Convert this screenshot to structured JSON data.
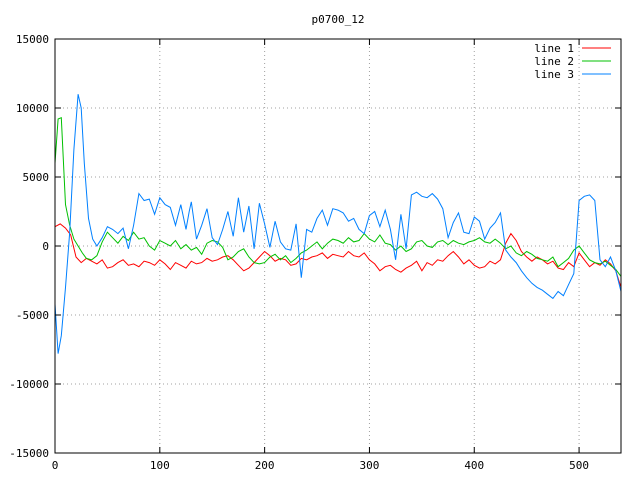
{
  "chart_data": {
    "type": "line",
    "title": "p0700_12",
    "xlabel": "",
    "ylabel": "",
    "xlim": [
      0,
      540
    ],
    "ylim": [
      -15000,
      15000
    ],
    "xticks": [
      0,
      100,
      200,
      300,
      400,
      500
    ],
    "yticks": [
      -15000,
      -10000,
      -5000,
      0,
      5000,
      10000,
      15000
    ],
    "grid": true,
    "legend_position": "top-right",
    "series": [
      {
        "name": "line 1",
        "color": "#ff0000",
        "x": [
          0,
          5,
          10,
          15,
          20,
          25,
          30,
          35,
          40,
          45,
          50,
          55,
          60,
          65,
          70,
          75,
          80,
          85,
          90,
          95,
          100,
          105,
          110,
          115,
          120,
          125,
          130,
          135,
          140,
          145,
          150,
          155,
          160,
          165,
          170,
          175,
          180,
          185,
          190,
          195,
          200,
          205,
          210,
          215,
          220,
          225,
          230,
          235,
          240,
          245,
          250,
          255,
          260,
          265,
          270,
          275,
          280,
          285,
          290,
          295,
          300,
          305,
          310,
          315,
          320,
          325,
          330,
          335,
          340,
          345,
          350,
          355,
          360,
          365,
          370,
          375,
          380,
          385,
          390,
          395,
          400,
          405,
          410,
          415,
          420,
          425,
          430,
          435,
          440,
          445,
          450,
          455,
          460,
          465,
          470,
          475,
          480,
          485,
          490,
          495,
          500,
          505,
          510,
          515,
          520,
          525,
          530,
          535,
          540
        ],
        "y": [
          1400,
          1600,
          1300,
          800,
          -800,
          -1200,
          -900,
          -1100,
          -1300,
          -1000,
          -1600,
          -1500,
          -1200,
          -1000,
          -1400,
          -1300,
          -1500,
          -1100,
          -1200,
          -1400,
          -1000,
          -1300,
          -1700,
          -1200,
          -1400,
          -1600,
          -1100,
          -1300,
          -1200,
          -900,
          -1100,
          -1000,
          -800,
          -700,
          -1000,
          -1400,
          -1800,
          -1600,
          -1200,
          -800,
          -400,
          -700,
          -1100,
          -900,
          -1000,
          -1400,
          -1300,
          -900,
          -1000,
          -800,
          -700,
          -500,
          -900,
          -600,
          -700,
          -800,
          -400,
          -700,
          -800,
          -500,
          -1000,
          -1300,
          -1800,
          -1500,
          -1400,
          -1700,
          -1900,
          -1600,
          -1400,
          -1100,
          -1800,
          -1200,
          -1400,
          -1000,
          -1100,
          -700,
          -400,
          -800,
          -1300,
          -1000,
          -1400,
          -1600,
          -1500,
          -1100,
          -1300,
          -1000,
          200,
          900,
          400,
          -400,
          -800,
          -1100,
          -800,
          -1000,
          -1300,
          -1100,
          -1600,
          -1700,
          -1200,
          -1500,
          -500,
          -1000,
          -1500,
          -1200,
          -1400,
          -1000,
          -1300,
          -1800,
          -3000
        ]
      },
      {
        "name": "line 2",
        "color": "#00c000",
        "x": [
          0,
          3,
          6,
          10,
          14,
          18,
          22,
          26,
          30,
          35,
          40,
          45,
          50,
          55,
          60,
          65,
          70,
          75,
          80,
          85,
          90,
          95,
          100,
          105,
          110,
          115,
          120,
          125,
          130,
          135,
          140,
          145,
          150,
          155,
          160,
          165,
          170,
          175,
          180,
          185,
          190,
          195,
          200,
          205,
          210,
          215,
          220,
          225,
          230,
          235,
          240,
          245,
          250,
          255,
          260,
          265,
          270,
          275,
          280,
          285,
          290,
          295,
          300,
          305,
          310,
          315,
          320,
          325,
          330,
          335,
          340,
          345,
          350,
          355,
          360,
          365,
          370,
          375,
          380,
          385,
          390,
          395,
          400,
          405,
          410,
          415,
          420,
          425,
          430,
          435,
          440,
          445,
          450,
          455,
          460,
          465,
          470,
          475,
          480,
          485,
          490,
          495,
          500,
          505,
          510,
          515,
          520,
          525,
          530,
          535,
          540
        ],
        "y": [
          6000,
          9200,
          9300,
          3000,
          1500,
          500,
          0,
          -500,
          -900,
          -1000,
          -700,
          300,
          1000,
          600,
          200,
          700,
          400,
          1000,
          500,
          600,
          0,
          -300,
          400,
          200,
          0,
          400,
          -200,
          100,
          -300,
          -100,
          -600,
          200,
          400,
          300,
          -100,
          -1000,
          -800,
          -400,
          -200,
          -800,
          -1200,
          -1300,
          -1200,
          -800,
          -600,
          -1000,
          -700,
          -1200,
          -900,
          -500,
          -300,
          0,
          300,
          -200,
          200,
          500,
          400,
          200,
          600,
          300,
          400,
          900,
          500,
          300,
          800,
          200,
          100,
          -300,
          0,
          -400,
          -200,
          300,
          400,
          0,
          -100,
          300,
          400,
          100,
          400,
          200,
          100,
          300,
          400,
          600,
          300,
          200,
          500,
          200,
          -200,
          0,
          -500,
          -700,
          -400,
          -600,
          -900,
          -1000,
          -1100,
          -800,
          -1500,
          -1200,
          -900,
          -300,
          0,
          -500,
          -1000,
          -1200,
          -1300,
          -1100,
          -1400,
          -1700,
          -2200
        ]
      },
      {
        "name": "line 3",
        "color": "#0080ff",
        "x": [
          0,
          3,
          6,
          10,
          14,
          18,
          22,
          25,
          28,
          32,
          36,
          40,
          45,
          50,
          55,
          60,
          65,
          70,
          75,
          80,
          85,
          90,
          95,
          100,
          105,
          110,
          115,
          120,
          125,
          128,
          130,
          135,
          140,
          145,
          150,
          155,
          160,
          165,
          170,
          175,
          180,
          185,
          190,
          195,
          200,
          205,
          210,
          215,
          220,
          225,
          230,
          235,
          240,
          245,
          250,
          255,
          260,
          265,
          270,
          275,
          280,
          285,
          290,
          295,
          300,
          305,
          310,
          315,
          320,
          325,
          330,
          335,
          340,
          345,
          350,
          355,
          360,
          365,
          370,
          375,
          380,
          385,
          390,
          395,
          400,
          405,
          410,
          415,
          420,
          425,
          430,
          435,
          440,
          445,
          450,
          455,
          460,
          465,
          470,
          475,
          480,
          485,
          490,
          495,
          500,
          505,
          510,
          515,
          520,
          525,
          530,
          535,
          540
        ],
        "y": [
          -4200,
          -7800,
          -6500,
          -3000,
          1000,
          7000,
          11000,
          10000,
          6000,
          2000,
          500,
          0,
          600,
          1400,
          1200,
          900,
          1300,
          -200,
          1500,
          3800,
          3300,
          3400,
          2300,
          3500,
          3000,
          2800,
          1500,
          3000,
          1200,
          2500,
          3200,
          500,
          1500,
          2700,
          600,
          100,
          1200,
          2500,
          700,
          3500,
          1000,
          2900,
          -200,
          3100,
          1600,
          -100,
          1800,
          300,
          -200,
          -300,
          1600,
          -2300,
          1200,
          1000,
          2000,
          2600,
          1500,
          2700,
          2600,
          2400,
          1800,
          2000,
          1200,
          900,
          2200,
          2500,
          1400,
          2600,
          1200,
          -1000,
          2300,
          -200,
          3700,
          3900,
          3600,
          3500,
          3800,
          3400,
          2700,
          600,
          1700,
          2400,
          1000,
          900,
          2100,
          1800,
          500,
          1300,
          1700,
          2400,
          -300,
          -800,
          -1200,
          -1800,
          -2300,
          -2700,
          -3000,
          -3200,
          -3500,
          -3800,
          -3300,
          -3600,
          -2800,
          -2000,
          3300,
          3600,
          3700,
          3300,
          -1000,
          -1500,
          -800,
          -1800,
          -3300
        ]
      }
    ]
  }
}
